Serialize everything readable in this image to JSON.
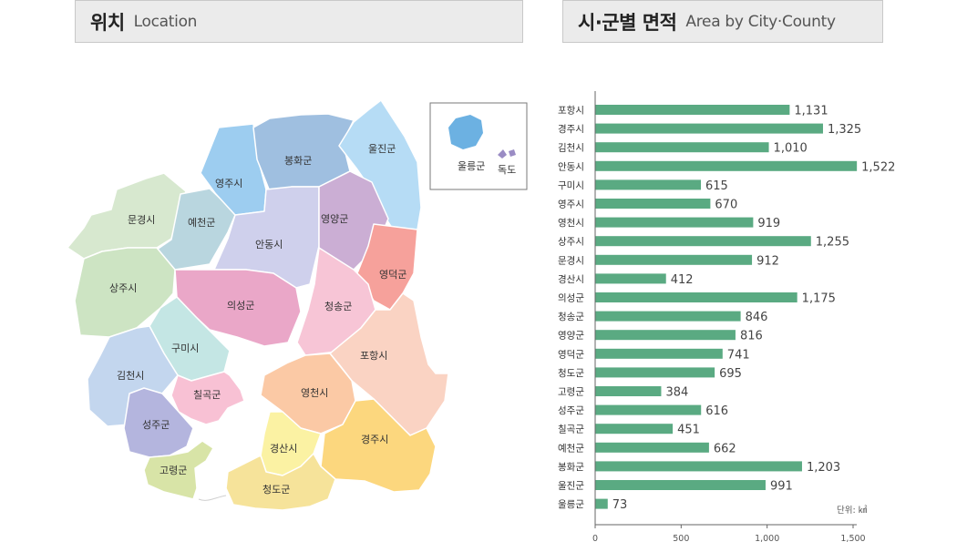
{
  "location_header": {
    "title_ko": "위치",
    "title_en": "Location"
  },
  "area_header": {
    "title_ko": "시·군별 면적",
    "title_en": "Area by City·County"
  },
  "map": {
    "regions": [
      {
        "id": "mungyeong",
        "name": "문경시",
        "color": "#d7e8cf"
      },
      {
        "id": "yecheon",
        "name": "예천군",
        "color": "#b9d6df"
      },
      {
        "id": "yeongju",
        "name": "영주시",
        "color": "#9dcdf0"
      },
      {
        "id": "bonghwa",
        "name": "봉화군",
        "color": "#9fbfe0"
      },
      {
        "id": "uljin",
        "name": "울진군",
        "color": "#b6dcf5"
      },
      {
        "id": "andong",
        "name": "안동시",
        "color": "#cfd0ec"
      },
      {
        "id": "yeongyang",
        "name": "영양군",
        "color": "#cbaed4"
      },
      {
        "id": "yeongdeok",
        "name": "영덕군",
        "color": "#f6a19b"
      },
      {
        "id": "sangju",
        "name": "상주시",
        "color": "#cde4c3"
      },
      {
        "id": "uiseong",
        "name": "의성군",
        "color": "#eaa7c8"
      },
      {
        "id": "cheongsong",
        "name": "청송군",
        "color": "#f7c5d6"
      },
      {
        "id": "gumi",
        "name": "구미시",
        "color": "#c4e6e4"
      },
      {
        "id": "gimcheon",
        "name": "김천시",
        "color": "#c3d6ee"
      },
      {
        "id": "chilgok",
        "name": "칠곡군",
        "color": "#f8c1d4"
      },
      {
        "id": "pohang",
        "name": "포항시",
        "color": "#fad3c3"
      },
      {
        "id": "yeongcheon",
        "name": "영천시",
        "color": "#fbc9a5"
      },
      {
        "id": "seongju",
        "name": "성주군",
        "color": "#b4b5de"
      },
      {
        "id": "gyeongsan",
        "name": "경산시",
        "color": "#fbf2a3"
      },
      {
        "id": "gyeongju",
        "name": "경주시",
        "color": "#fcd77e"
      },
      {
        "id": "goryeong",
        "name": "고령군",
        "color": "#d8e4a7"
      },
      {
        "id": "cheongdo",
        "name": "청도군",
        "color": "#f6e39a"
      }
    ],
    "inset": {
      "ulleung": "울릉군",
      "dokdo": "독도",
      "ulleung_color": "#6cb1e2",
      "dokdo_color": "#9a8cc4"
    }
  },
  "chart_data": {
    "type": "bar",
    "orientation": "horizontal",
    "categories": [
      "포항시",
      "경주시",
      "김천시",
      "안동시",
      "구미시",
      "영주시",
      "영천시",
      "상주시",
      "문경시",
      "경산시",
      "의성군",
      "청송군",
      "영양군",
      "영덕군",
      "청도군",
      "고령군",
      "성주군",
      "칠곡군",
      "예천군",
      "봉화군",
      "울진군",
      "울릉군"
    ],
    "values": [
      1131,
      1325,
      1010,
      1522,
      615,
      670,
      919,
      1255,
      912,
      412,
      1175,
      846,
      816,
      741,
      695,
      384,
      616,
      451,
      662,
      1203,
      991,
      73
    ],
    "value_labels": [
      "1,131",
      "1,325",
      "1,010",
      "1,522",
      "615",
      "670",
      "919",
      "1,255",
      "912",
      "412",
      "1,175",
      "846",
      "816",
      "741",
      "695",
      "384",
      "616",
      "451",
      "662",
      "1,203",
      "991",
      "73"
    ],
    "xticks": [
      0,
      500,
      1000,
      1500
    ],
    "xtick_labels": [
      "0",
      "500",
      "1,000",
      "1,500"
    ],
    "xlim": [
      0,
      1500
    ],
    "unit": "단위: ㎢",
    "bar_color": "#5aaa82",
    "grid": false,
    "legend": "none"
  }
}
